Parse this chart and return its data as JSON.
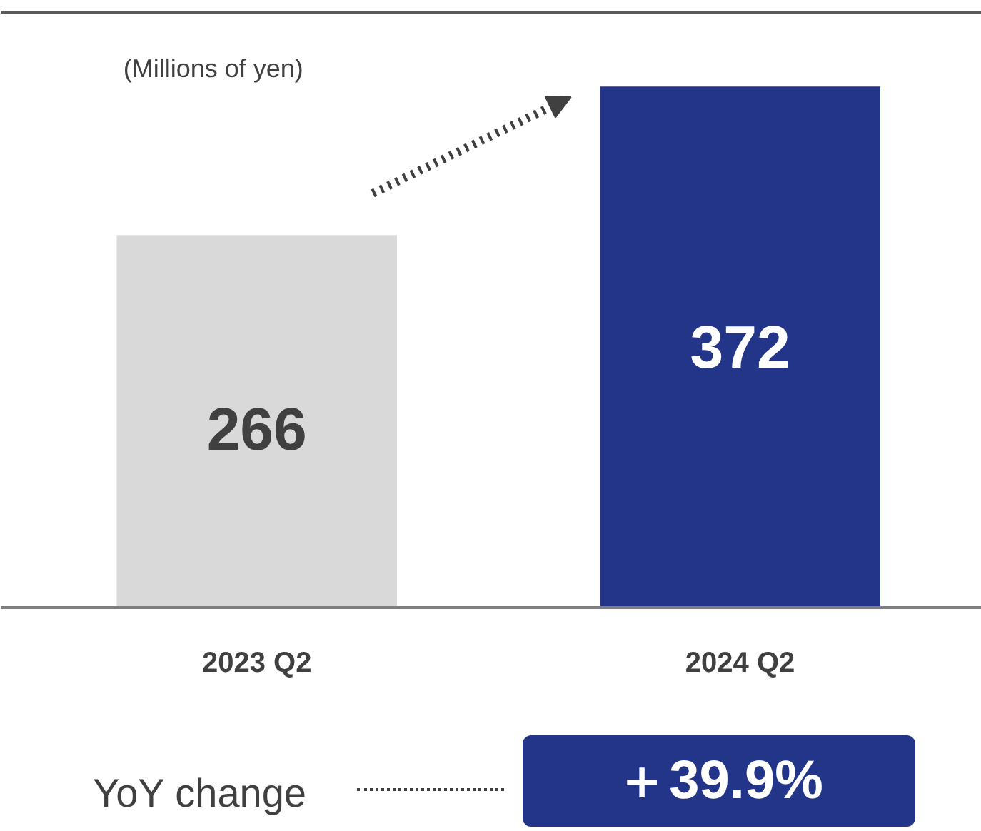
{
  "chart_data": {
    "type": "bar",
    "ylabel": "(Millions of yen)",
    "categories": [
      "2023 Q2",
      "2024 Q2"
    ],
    "values": [
      266,
      372
    ],
    "colors": [
      "#d9d9d9",
      "#233588"
    ],
    "data_labels": true,
    "grid": false,
    "annotations": [
      "YoY change",
      "＋39.9%"
    ]
  }
}
